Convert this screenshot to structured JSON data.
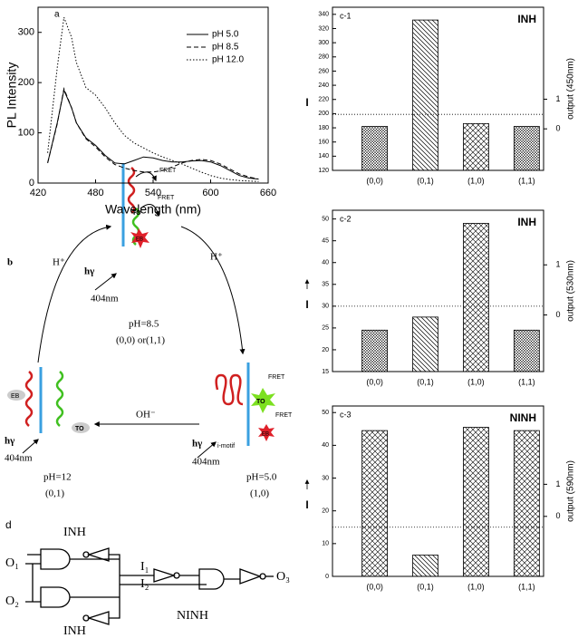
{
  "chart_data": [
    {
      "type": "line",
      "panel": "a",
      "x_label": "Wavelength (nm)",
      "y_label": "PL Intensity",
      "x": [
        430,
        440,
        447,
        455,
        460,
        470,
        480,
        490,
        500,
        510,
        520,
        530,
        540,
        550,
        560,
        570,
        580,
        590,
        600,
        610,
        620,
        630,
        640,
        650
      ],
      "series": [
        {
          "name": "pH 5.0",
          "color": "#000000",
          "dash": "solid",
          "values": [
            40,
            120,
            185,
            150,
            120,
            90,
            75,
            55,
            40,
            38,
            45,
            52,
            50,
            45,
            42,
            42,
            44,
            45,
            42,
            35,
            25,
            15,
            10,
            8
          ]
        },
        {
          "name": "pH 8.5",
          "color": "#000000",
          "dash": "dashed",
          "values": [
            40,
            118,
            188,
            150,
            120,
            88,
            72,
            52,
            37,
            30,
            25,
            22,
            22,
            25,
            32,
            40,
            45,
            47,
            45,
            38,
            28,
            18,
            12,
            8
          ]
        },
        {
          "name": "pH 12.0",
          "color": "#000000",
          "dash": "dotted",
          "values": [
            60,
            230,
            330,
            290,
            240,
            190,
            175,
            150,
            120,
            95,
            80,
            70,
            60,
            52,
            45,
            38,
            30,
            22,
            15,
            10,
            7,
            5,
            4,
            3
          ]
        }
      ],
      "xlim": [
        420,
        660
      ],
      "xticks": [
        420,
        480,
        540,
        600,
        660
      ],
      "ylim": [
        0,
        350
      ],
      "yticks": [
        0,
        100,
        200,
        300
      ],
      "legend": "upper right"
    },
    {
      "type": "bar",
      "panel": "c-1",
      "annotation": "INH",
      "y_label": "I",
      "y2_label": "output (450nm)",
      "categories": [
        "(0,0)",
        "(0,1)",
        "(1,0)",
        "(1,1)"
      ],
      "values": [
        182,
        332,
        186,
        182
      ],
      "hatches": [
        "dense",
        "back",
        "cross",
        "dense"
      ],
      "threshold": 199,
      "ylim": [
        120,
        350
      ],
      "yticks": [
        120,
        140,
        160,
        180,
        200,
        220,
        240,
        260,
        280,
        300,
        320,
        340
      ],
      "y2lim": [
        -1.4,
        4.1
      ],
      "y2ticks": [
        0,
        1
      ],
      "arrow": false
    },
    {
      "type": "bar",
      "panel": "c-2",
      "annotation": "INH",
      "y_label": "I",
      "y2_label": "output (530nm)",
      "categories": [
        "(0,0)",
        "(0,1)",
        "(1,0)",
        "(1,1)"
      ],
      "values": [
        24.5,
        27.5,
        49,
        24.5
      ],
      "hatches": [
        "dense",
        "back",
        "cross",
        "dense"
      ],
      "threshold": 30,
      "ylim": [
        15,
        52
      ],
      "yticks": [
        15,
        20,
        25,
        30,
        35,
        40,
        45,
        50
      ],
      "y2lim": [
        -1.13,
        2.09
      ],
      "y2ticks": [
        0,
        1
      ],
      "arrow": true
    },
    {
      "type": "bar",
      "panel": "c-3",
      "annotation": "NINH",
      "y_label": "I",
      "y2_label": "output (590nm)",
      "categories": [
        "(0,0)",
        "(0,1)",
        "(1,0)",
        "(1,1)"
      ],
      "values": [
        44.5,
        6.5,
        45.5,
        44.5
      ],
      "hatches": [
        "cross",
        "back",
        "cross",
        "cross"
      ],
      "threshold": 15,
      "ylim": [
        0,
        52
      ],
      "yticks": [
        0,
        10,
        20,
        30,
        40,
        50
      ],
      "y2lim": [
        -1.87,
        3.44
      ],
      "y2ticks": [
        0,
        1
      ],
      "arrow": true
    }
  ],
  "panel_b": {
    "label": "b",
    "texts": [
      "FRET",
      "FRET",
      "TO",
      "EB",
      "hγ",
      "404nm",
      "pH=8.5",
      "(0,0) or(1,1)",
      "H⁺",
      "H⁺",
      "EB",
      "TO",
      "hγ",
      "404nm",
      "pH=12",
      "(0,1)",
      "OH⁻",
      "FRET",
      "TO",
      "FRET",
      "EB",
      "i-motif",
      "hγ",
      "404nm",
      "pH=5.0",
      "(1,0)"
    ]
  },
  "panel_d": {
    "label": "d",
    "texts": [
      "INH",
      "O₁",
      "O₂",
      "I₁",
      "I₂",
      "NINH",
      "O₃",
      "INH"
    ]
  }
}
